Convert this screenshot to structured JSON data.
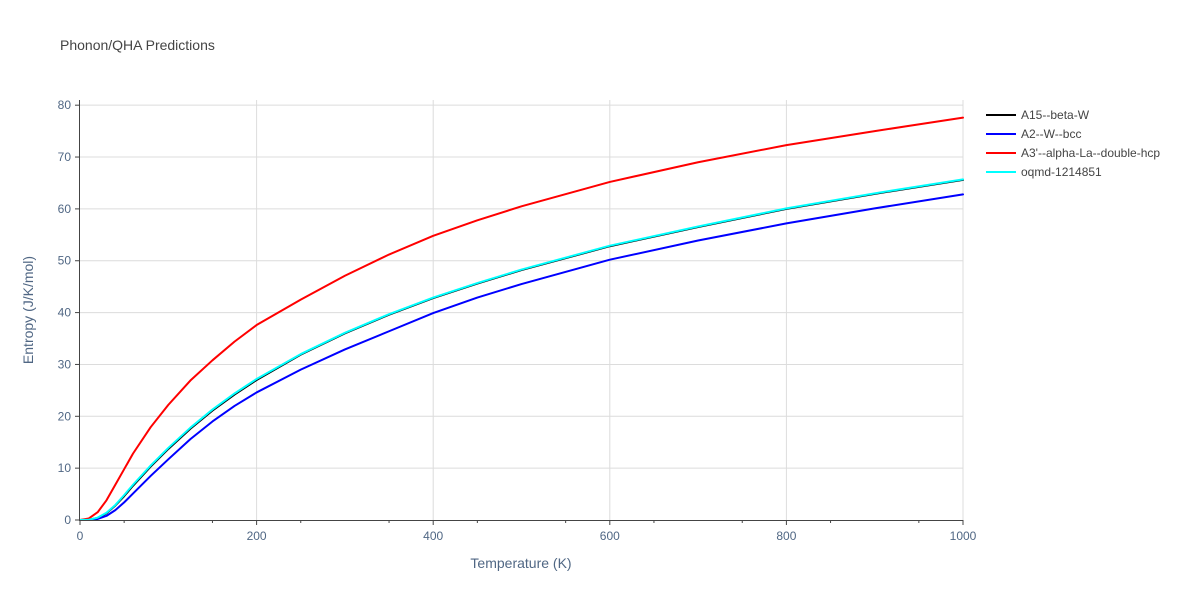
{
  "chart_data": {
    "type": "line",
    "title": "Phonon/QHA Predictions",
    "xlabel": "Temperature (K)",
    "ylabel": "Entropy (J/K/mol)",
    "xlim": [
      0,
      1000
    ],
    "ylim": [
      0,
      81
    ],
    "xticks": [
      0,
      200,
      400,
      600,
      800,
      1000
    ],
    "yticks": [
      0,
      10,
      20,
      30,
      40,
      50,
      60,
      70,
      80
    ],
    "grid": true,
    "legend_position": "top-right outside",
    "series": [
      {
        "name": "A15--beta-W",
        "color": "#000000",
        "x": [
          0,
          10,
          20,
          30,
          40,
          50,
          60,
          80,
          100,
          125,
          150,
          175,
          200,
          250,
          300,
          350,
          400,
          450,
          500,
          600,
          700,
          800,
          900,
          1000
        ],
        "y": [
          0,
          0.05,
          0.4,
          1.3,
          2.8,
          4.6,
          6.6,
          10.3,
          13.7,
          17.6,
          21.1,
          24.2,
          27.0,
          31.9,
          36.0,
          39.6,
          42.8,
          45.6,
          48.2,
          52.8,
          56.5,
          60.0,
          62.9,
          65.6
        ]
      },
      {
        "name": "A2--W--bcc",
        "color": "#0000ff",
        "x": [
          0,
          10,
          20,
          30,
          40,
          50,
          60,
          80,
          100,
          125,
          150,
          175,
          200,
          250,
          300,
          350,
          400,
          450,
          500,
          600,
          700,
          800,
          900,
          1000
        ],
        "y": [
          0,
          0.02,
          0.2,
          0.8,
          1.9,
          3.4,
          5.1,
          8.5,
          11.7,
          15.6,
          19.0,
          22.0,
          24.6,
          29.0,
          32.9,
          36.4,
          39.9,
          42.9,
          45.5,
          50.2,
          53.9,
          57.2,
          60.1,
          62.8
        ]
      },
      {
        "name": "A3'--alpha-La--double-hcp",
        "color": "#ff0000",
        "x": [
          0,
          10,
          20,
          30,
          40,
          50,
          60,
          80,
          100,
          125,
          150,
          175,
          200,
          250,
          300,
          350,
          400,
          450,
          500,
          600,
          700,
          800,
          900,
          1000
        ],
        "y": [
          0,
          0.3,
          1.5,
          3.8,
          6.8,
          9.8,
          12.8,
          17.9,
          22.2,
          26.9,
          30.8,
          34.4,
          37.6,
          42.5,
          47.1,
          51.2,
          54.8,
          57.8,
          60.5,
          65.2,
          69.0,
          72.3,
          75.0,
          77.6
        ]
      },
      {
        "name": "oqmd-1214851",
        "color": "#00ffff",
        "x": [
          0,
          10,
          20,
          30,
          40,
          50,
          60,
          80,
          100,
          125,
          150,
          175,
          200,
          250,
          300,
          350,
          400,
          450,
          500,
          600,
          700,
          800,
          900,
          1000
        ],
        "y": [
          0,
          0.05,
          0.45,
          1.4,
          2.9,
          4.8,
          6.8,
          10.5,
          13.9,
          17.8,
          21.3,
          24.4,
          27.2,
          32.0,
          36.1,
          39.7,
          42.9,
          45.7,
          48.3,
          52.9,
          56.6,
          60.1,
          63.0,
          65.7
        ]
      }
    ]
  }
}
